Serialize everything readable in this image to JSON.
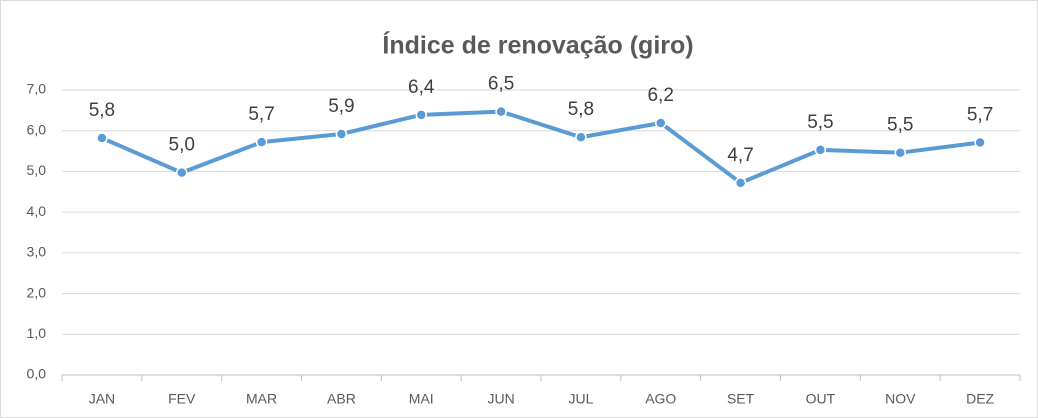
{
  "chart_data": {
    "type": "line",
    "title": "Índice de renovação (giro)",
    "categories": [
      "JAN",
      "FEV",
      "MAR",
      "ABR",
      "MAI",
      "JUN",
      "JUL",
      "AGO",
      "SET",
      "OUT",
      "NOV",
      "DEZ"
    ],
    "series": [
      {
        "name": "Índice de renovação (giro)",
        "color": "#5b9bd5",
        "values": [
          5.82,
          4.97,
          5.72,
          5.92,
          6.39,
          6.47,
          5.84,
          6.19,
          4.72,
          5.53,
          5.46,
          5.71
        ],
        "value_labels": [
          "5,8",
          "5,0",
          "5,7",
          "5,9",
          "6,4",
          "6,5",
          "5,8",
          "6,2",
          "4,7",
          "5,5",
          "5,5",
          "5,7"
        ]
      }
    ],
    "ylim": [
      0,
      7
    ],
    "yticks": [
      {
        "value": 0,
        "label": "0,0"
      },
      {
        "value": 1,
        "label": "1,0"
      },
      {
        "value": 2,
        "label": "2,0"
      },
      {
        "value": 3,
        "label": "3,0"
      },
      {
        "value": 4,
        "label": "4,0"
      },
      {
        "value": 5,
        "label": "5,0"
      },
      {
        "value": 6,
        "label": "6,0"
      },
      {
        "value": 7,
        "label": "7,0"
      }
    ],
    "grid": true
  }
}
